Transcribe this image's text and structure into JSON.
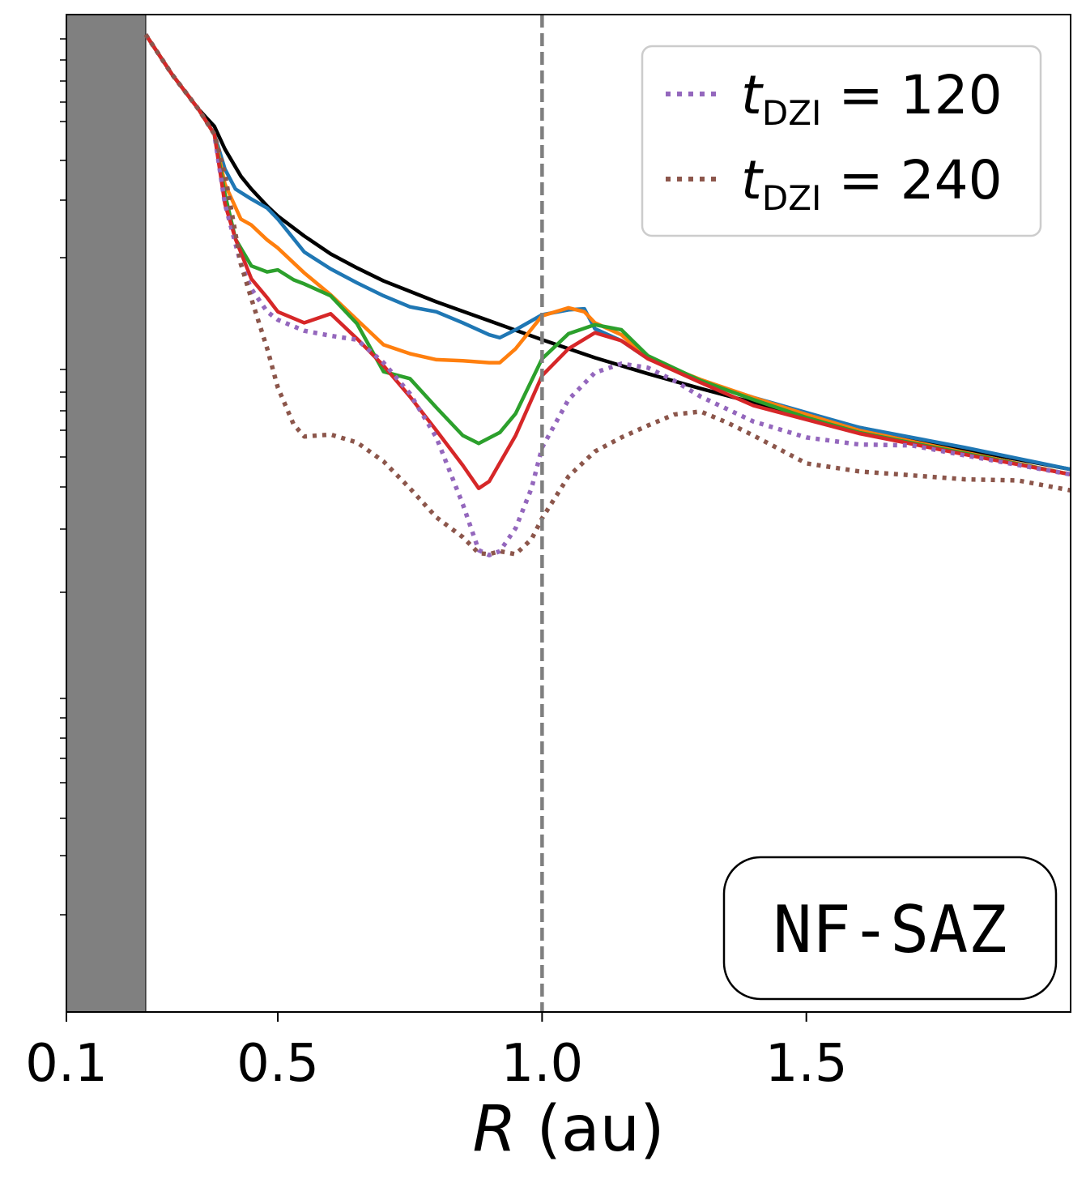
{
  "chart_data": {
    "type": "line",
    "xlabel_var": "R",
    "xlabel_unit": " (au)",
    "xlim": [
      0.1,
      2.0
    ],
    "ylim": [
      0,
      100
    ],
    "y_scale": "log",
    "x_ticks": [
      {
        "value": 0.1,
        "label": "0.1"
      },
      {
        "value": 0.5,
        "label": "0.5"
      },
      {
        "value": 1.0,
        "label": "1.0"
      },
      {
        "value": 1.5,
        "label": "1.5"
      }
    ],
    "shaded_region": {
      "x": [
        0.1,
        0.25
      ],
      "color": "#808080"
    },
    "vline": {
      "x": 1.0,
      "color": "#7f7f7f",
      "style": "dashed"
    },
    "annotation": "NF-SAZ",
    "legend": {
      "placement": "top-right",
      "entries": [
        {
          "var": "t",
          "sub": "DZI",
          "rest": " = 120",
          "color": "#9467bd",
          "style": "dotted"
        },
        {
          "var": "t",
          "sub": "DZI",
          "rest": " = 240",
          "color": "#8c564b",
          "style": "dotted"
        }
      ]
    },
    "series": [
      {
        "color": "#000000",
        "style": "solid",
        "x": [
          0.25,
          0.3,
          0.35,
          0.38,
          0.4,
          0.43,
          0.45,
          0.48,
          0.5,
          0.55,
          0.6,
          0.65,
          0.7,
          0.8,
          0.9,
          1.0,
          1.1,
          1.2,
          1.3,
          1.4,
          1.5,
          1.6,
          1.7,
          1.8,
          1.9,
          2.0
        ],
        "y": [
          98,
          94,
          90.5,
          88.8,
          86.5,
          83.8,
          82.5,
          80.8,
          79.8,
          77.8,
          76,
          74.6,
          73.3,
          71.2,
          69.3,
          67.4,
          65.6,
          64,
          62.5,
          61.1,
          59.8,
          58.6,
          57.5,
          56.4,
          55.4,
          54.4
        ]
      },
      {
        "color": "#1f77b4",
        "style": "solid",
        "x": [
          0.25,
          0.3,
          0.35,
          0.38,
          0.4,
          0.42,
          0.45,
          0.48,
          0.5,
          0.55,
          0.6,
          0.65,
          0.7,
          0.75,
          0.8,
          0.85,
          0.9,
          0.92,
          0.95,
          1.0,
          1.05,
          1.08,
          1.1,
          1.15,
          1.2,
          1.3,
          1.4,
          1.5,
          1.6,
          1.8,
          2.0
        ],
        "y": [
          98,
          94,
          90.5,
          88,
          84.5,
          82.5,
          81.5,
          80.6,
          79.5,
          76.2,
          74.5,
          73.1,
          71.8,
          70.7,
          70.2,
          69.1,
          67.9,
          67.6,
          68.4,
          69.9,
          70.4,
          70.5,
          68.5,
          67.3,
          65.5,
          63.3,
          61.6,
          60.1,
          58.6,
          56.6,
          54.4
        ]
      },
      {
        "color": "#ff7f0e",
        "style": "solid",
        "x": [
          0.25,
          0.3,
          0.35,
          0.38,
          0.4,
          0.43,
          0.45,
          0.48,
          0.5,
          0.55,
          0.6,
          0.65,
          0.7,
          0.75,
          0.8,
          0.85,
          0.9,
          0.92,
          0.95,
          1.0,
          1.05,
          1.08,
          1.1,
          1.15,
          1.2,
          1.3,
          1.4,
          1.5,
          1.6,
          1.8,
          2.0
        ],
        "y": [
          98,
          94,
          90.5,
          88,
          83,
          79.5,
          78.9,
          77.4,
          76.6,
          74.1,
          71.9,
          69.4,
          66.9,
          66,
          65.4,
          65.3,
          65.1,
          65.1,
          66.5,
          69.8,
          70.6,
          70.2,
          69.1,
          67.9,
          65.5,
          63.4,
          61.6,
          59.9,
          58.3,
          56.1,
          53.9
        ]
      },
      {
        "color": "#2ca02c",
        "style": "solid",
        "x": [
          0.25,
          0.3,
          0.35,
          0.38,
          0.4,
          0.42,
          0.45,
          0.48,
          0.5,
          0.53,
          0.55,
          0.6,
          0.65,
          0.7,
          0.75,
          0.8,
          0.85,
          0.88,
          0.92,
          0.95,
          1.0,
          1.05,
          1.1,
          1.15,
          1.2,
          1.3,
          1.4,
          1.5,
          1.6,
          1.8,
          2.0
        ],
        "y": [
          98,
          94,
          90.5,
          88,
          82,
          77.5,
          74.8,
          74.2,
          74.4,
          73.4,
          73,
          71.8,
          69,
          64.2,
          63.5,
          60.6,
          57.8,
          57,
          58.1,
          60,
          65.5,
          68,
          68.9,
          68.4,
          65.8,
          63.3,
          61.4,
          59.6,
          58.1,
          56,
          53.9
        ]
      },
      {
        "color": "#d62728",
        "style": "solid",
        "x": [
          0.25,
          0.3,
          0.35,
          0.38,
          0.4,
          0.42,
          0.45,
          0.48,
          0.5,
          0.55,
          0.6,
          0.65,
          0.7,
          0.75,
          0.8,
          0.85,
          0.88,
          0.9,
          0.95,
          1.0,
          1.05,
          1.1,
          1.15,
          1.2,
          1.3,
          1.4,
          1.5,
          1.6,
          1.8,
          2.0
        ],
        "y": [
          98,
          94,
          90.5,
          88,
          81,
          77.5,
          73.5,
          71.6,
          70.2,
          69.1,
          70,
          67.5,
          64.8,
          61.7,
          58.3,
          54.8,
          52.5,
          53.2,
          57.8,
          63.8,
          66.5,
          68.1,
          67.3,
          65.5,
          63.1,
          60.8,
          59.4,
          58,
          55.9,
          53.9
        ]
      },
      {
        "color": "#9467bd",
        "style": "dotted",
        "x": [
          0.25,
          0.3,
          0.35,
          0.38,
          0.4,
          0.43,
          0.45,
          0.48,
          0.5,
          0.55,
          0.6,
          0.65,
          0.7,
          0.75,
          0.8,
          0.85,
          0.88,
          0.9,
          0.92,
          0.95,
          0.98,
          1.0,
          1.05,
          1.1,
          1.15,
          1.2,
          1.25,
          1.3,
          1.4,
          1.5,
          1.6,
          1.7,
          1.8,
          2.0
        ],
        "y": [
          98,
          94,
          90.5,
          88,
          81,
          75,
          72.5,
          70.2,
          69.4,
          68.3,
          67.8,
          67.4,
          65.1,
          62,
          57.6,
          50.9,
          46.3,
          45.8,
          46.2,
          48.5,
          52.5,
          56.6,
          61.4,
          64.1,
          65,
          64.6,
          63.3,
          61.7,
          59.2,
          57.6,
          56.9,
          56.8,
          55.8,
          53.9
        ]
      },
      {
        "color": "#8c564b",
        "style": "dotted",
        "x": [
          0.25,
          0.3,
          0.35,
          0.38,
          0.4,
          0.43,
          0.45,
          0.48,
          0.5,
          0.53,
          0.55,
          0.6,
          0.65,
          0.7,
          0.75,
          0.8,
          0.85,
          0.88,
          0.9,
          0.92,
          0.95,
          0.98,
          1.0,
          1.05,
          1.1,
          1.15,
          1.2,
          1.25,
          1.3,
          1.35,
          1.4,
          1.5,
          1.6,
          1.8,
          1.9,
          2.0
        ],
        "y": [
          98,
          94,
          90.5,
          88,
          84,
          75,
          71.5,
          66.5,
          62.6,
          58.9,
          57.7,
          57.9,
          57.1,
          55.2,
          52.5,
          49.6,
          47.6,
          46,
          45.9,
          46.2,
          45.9,
          47.4,
          49.5,
          53.7,
          56.2,
          57.6,
          58.8,
          59.9,
          60.2,
          59.1,
          57.8,
          55,
          54.2,
          53.4,
          53.3,
          52.3
        ]
      }
    ]
  }
}
